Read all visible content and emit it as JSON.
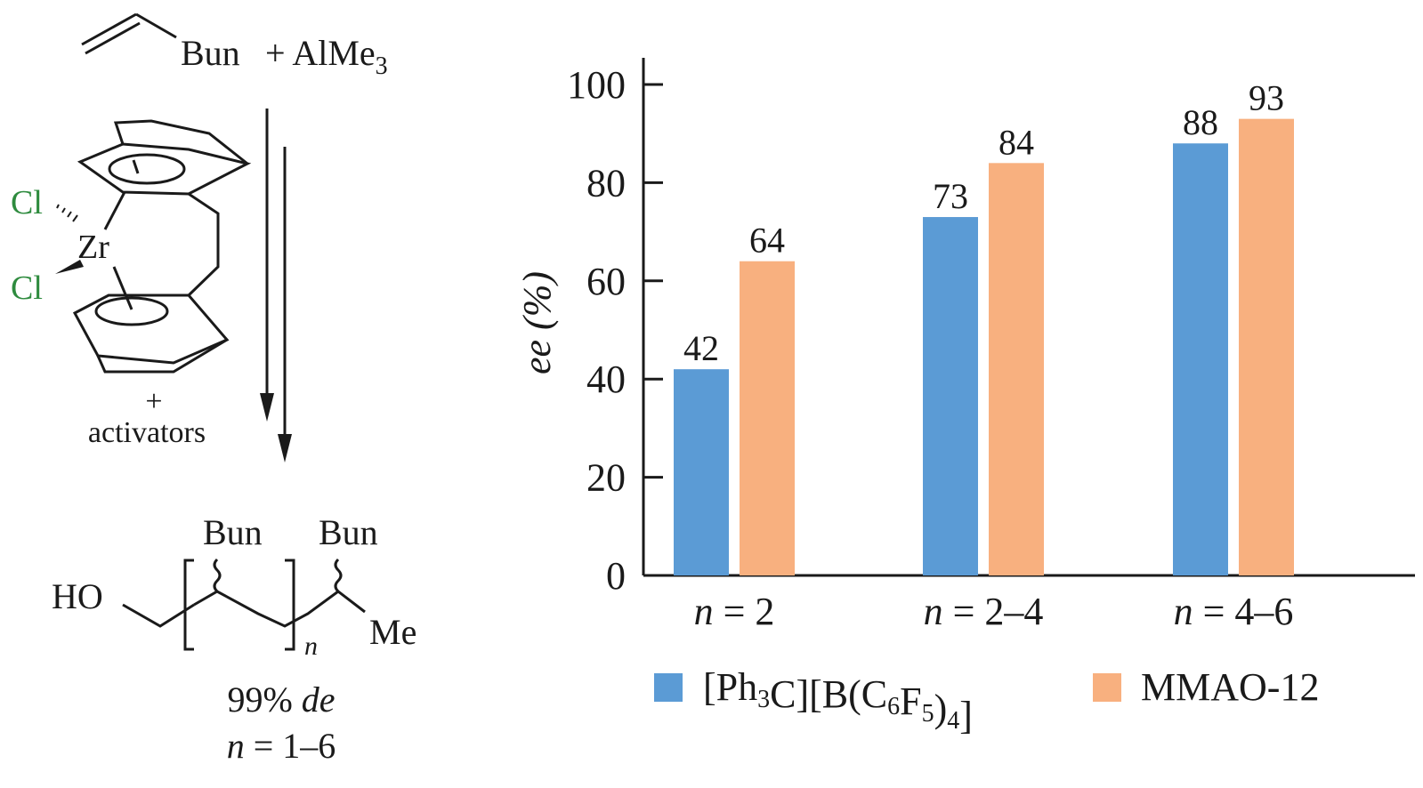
{
  "scheme": {
    "reactant_bu": "Bun",
    "reactant_plus_almе3": "+ AlMe",
    "almе3_sub": "3",
    "cl_top": "Cl",
    "cl_bottom": "Cl",
    "zr": "Zr",
    "plus": "+",
    "activators": "activators",
    "product_ho": "HO",
    "product_bu1": "Bun",
    "product_bu2": "Bun",
    "product_n": "n",
    "product_me": "Me",
    "de_value": "99%",
    "de_label": "de",
    "n_range_var": "n",
    "n_range": "= 1–6"
  },
  "chart_data": {
    "type": "bar",
    "categories": [
      "n = 2",
      "n = 2–4",
      "n = 4–6"
    ],
    "category_var": "n",
    "category_values": [
      "= 2",
      "= 2–4",
      "= 4–6"
    ],
    "series": [
      {
        "name": "[Ph3C][B(C6F5)4]",
        "values": [
          42,
          73,
          88
        ],
        "color": "#5b9bd5"
      },
      {
        "name": "MMAO-12",
        "values": [
          64,
          84,
          93
        ],
        "color": "#f8b07f"
      }
    ],
    "ylabel": "ee (%)",
    "ylim": [
      0,
      100
    ],
    "yticks": [
      0,
      20,
      40,
      60,
      80,
      100
    ],
    "legend_position": "bottom"
  }
}
